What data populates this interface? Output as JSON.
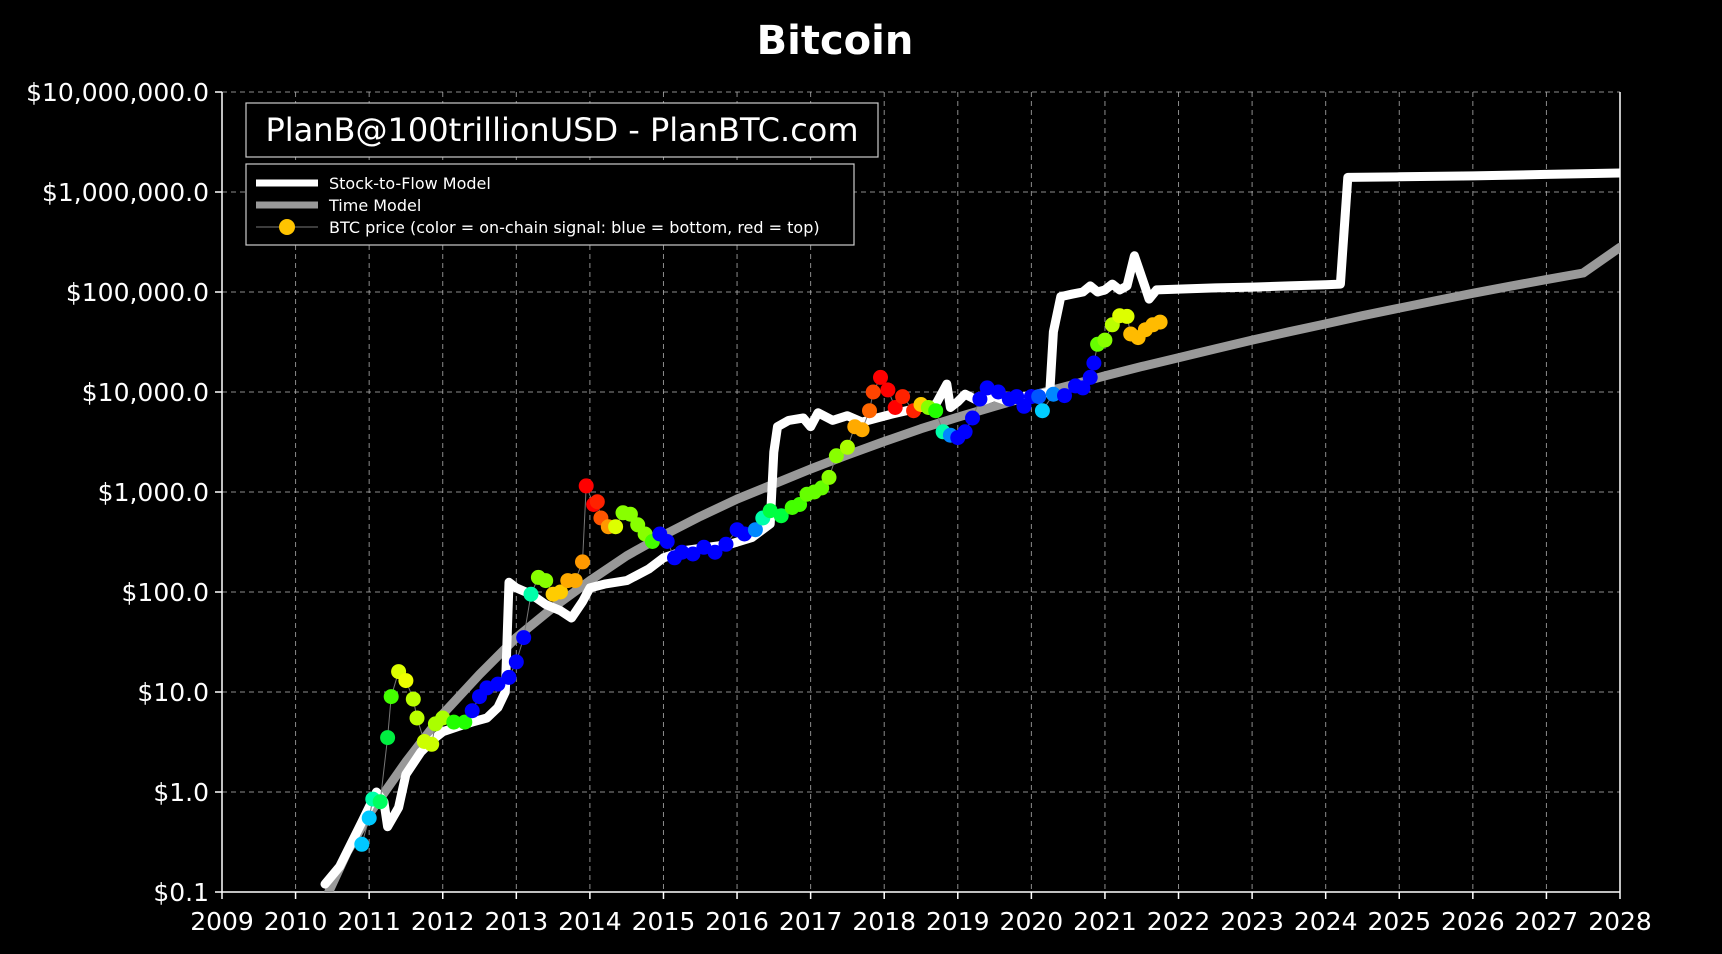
{
  "chart_data": {
    "type": "line",
    "title": "Bitcoin",
    "annotation": "PlanB@100trillionUSD - PlanBTC.com",
    "xlabel": "",
    "ylabel": "",
    "y_scale": "log",
    "xlim": [
      2009,
      2028
    ],
    "ylim": [
      0.1,
      10000000
    ],
    "grid": true,
    "background": "#000000",
    "legend_position": "top-left",
    "x_ticks": [
      "2009",
      "2010",
      "2011",
      "2012",
      "2013",
      "2014",
      "2015",
      "2016",
      "2017",
      "2018",
      "2019",
      "2020",
      "2021",
      "2022",
      "2023",
      "2024",
      "2025",
      "2026",
      "2027",
      "2028"
    ],
    "y_ticks": [
      "$0.1",
      "$1.0",
      "$10.0",
      "$100.0",
      "$1,000.0",
      "$10,000.0",
      "$100,000.0",
      "$1,000,000.0",
      "$10,000,000.0"
    ],
    "legend": [
      {
        "label": "Stock-to-Flow Model",
        "color": "#ffffff"
      },
      {
        "label": "Time Model",
        "color": "#999999"
      },
      {
        "label": "BTC price (color = on-chain signal: blue = bottom, red = top)",
        "color": "#ffc400"
      }
    ],
    "series": [
      {
        "name": "Stock-to-Flow Model",
        "color": "#ffffff",
        "points": [
          [
            2010.4,
            0.12
          ],
          [
            2010.6,
            0.18
          ],
          [
            2010.9,
            0.5
          ],
          [
            2011.1,
            1.0
          ],
          [
            2011.2,
            0.8
          ],
          [
            2011.25,
            0.45
          ],
          [
            2011.4,
            0.7
          ],
          [
            2011.5,
            1.5
          ],
          [
            2011.7,
            2.5
          ],
          [
            2011.9,
            3.5
          ],
          [
            2012.0,
            4.0
          ],
          [
            2012.2,
            4.5
          ],
          [
            2012.4,
            5.0
          ],
          [
            2012.6,
            5.5
          ],
          [
            2012.75,
            7
          ],
          [
            2012.85,
            10
          ],
          [
            2012.9,
            125
          ],
          [
            2013.0,
            110
          ],
          [
            2013.2,
            95
          ],
          [
            2013.4,
            75
          ],
          [
            2013.6,
            65
          ],
          [
            2013.75,
            55
          ],
          [
            2013.9,
            80
          ],
          [
            2014.0,
            110
          ],
          [
            2014.2,
            120
          ],
          [
            2014.5,
            130
          ],
          [
            2014.8,
            170
          ],
          [
            2015.0,
            220
          ],
          [
            2015.3,
            260
          ],
          [
            2015.6,
            280
          ],
          [
            2015.9,
            300
          ],
          [
            2016.2,
            350
          ],
          [
            2016.45,
            480
          ],
          [
            2016.5,
            2500
          ],
          [
            2016.55,
            4500
          ],
          [
            2016.7,
            5200
          ],
          [
            2016.9,
            5500
          ],
          [
            2017.0,
            4500
          ],
          [
            2017.1,
            6200
          ],
          [
            2017.3,
            5200
          ],
          [
            2017.5,
            5800
          ],
          [
            2017.7,
            5000
          ],
          [
            2017.9,
            5500
          ],
          [
            2018.1,
            6000
          ],
          [
            2018.3,
            6500
          ],
          [
            2018.5,
            7000
          ],
          [
            2018.7,
            7500
          ],
          [
            2018.85,
            12000
          ],
          [
            2018.9,
            7000
          ],
          [
            2019.0,
            8000
          ],
          [
            2019.1,
            9500
          ],
          [
            2019.3,
            8000
          ],
          [
            2019.5,
            9000
          ],
          [
            2019.7,
            8000
          ],
          [
            2019.9,
            9000
          ],
          [
            2020.1,
            9500
          ],
          [
            2020.25,
            10000
          ],
          [
            2020.3,
            40000
          ],
          [
            2020.4,
            90000
          ],
          [
            2020.55,
            95000
          ],
          [
            2020.7,
            100000
          ],
          [
            2020.8,
            115000
          ],
          [
            2020.9,
            100000
          ],
          [
            2021.0,
            105000
          ],
          [
            2021.1,
            120000
          ],
          [
            2021.2,
            105000
          ],
          [
            2021.3,
            115000
          ],
          [
            2021.4,
            230000
          ],
          [
            2021.55,
            110000
          ],
          [
            2021.6,
            85000
          ],
          [
            2021.7,
            105000
          ],
          [
            2022.0,
            107000
          ],
          [
            2022.5,
            110000
          ],
          [
            2023.0,
            112000
          ],
          [
            2023.5,
            115000
          ],
          [
            2024.0,
            118000
          ],
          [
            2024.2,
            120000
          ],
          [
            2024.3,
            1400000
          ],
          [
            2025.0,
            1420000
          ],
          [
            2026.0,
            1450000
          ],
          [
            2027.0,
            1500000
          ],
          [
            2028.0,
            1550000
          ]
        ]
      },
      {
        "name": "Time Model",
        "color": "#999999",
        "points": [
          [
            2010.45,
            0.1
          ],
          [
            2010.7,
            0.25
          ],
          [
            2011.0,
            0.6
          ],
          [
            2011.5,
            2.0
          ],
          [
            2012.0,
            6.0
          ],
          [
            2012.5,
            15
          ],
          [
            2013.0,
            35
          ],
          [
            2013.5,
            70
          ],
          [
            2014.0,
            130
          ],
          [
            2014.5,
            230
          ],
          [
            2015.0,
            370
          ],
          [
            2015.5,
            570
          ],
          [
            2016.0,
            850
          ],
          [
            2016.5,
            1200
          ],
          [
            2017.0,
            1700
          ],
          [
            2017.5,
            2350
          ],
          [
            2018.0,
            3200
          ],
          [
            2018.5,
            4300
          ],
          [
            2019.0,
            5600
          ],
          [
            2019.5,
            7200
          ],
          [
            2020.0,
            9200
          ],
          [
            2020.5,
            11500
          ],
          [
            2021.0,
            14500
          ],
          [
            2021.5,
            18000
          ],
          [
            2022.0,
            22000
          ],
          [
            2022.5,
            27000
          ],
          [
            2023.0,
            33000
          ],
          [
            2023.5,
            40000
          ],
          [
            2024.0,
            48000
          ],
          [
            2024.5,
            58000
          ],
          [
            2025.0,
            69000
          ],
          [
            2025.5,
            82000
          ],
          [
            2026.0,
            97000
          ],
          [
            2026.5,
            114000
          ],
          [
            2027.0,
            133000
          ],
          [
            2027.5,
            155000
          ],
          [
            2028.0,
            280000
          ]
        ]
      },
      {
        "name": "BTC price (color = on-chain signal: blue = bottom, red = top)",
        "type": "scatter",
        "points": [
          [
            2010.9,
            0.3,
            "#00c8ff"
          ],
          [
            2011.0,
            0.55,
            "#00c8ff"
          ],
          [
            2011.05,
            0.85,
            "#00ffaa"
          ],
          [
            2011.15,
            0.8,
            "#00ff60"
          ],
          [
            2011.25,
            3.5,
            "#00ee40"
          ],
          [
            2011.3,
            9,
            "#44ff00"
          ],
          [
            2011.4,
            16,
            "#ddff00"
          ],
          [
            2011.5,
            13,
            "#eeff00"
          ],
          [
            2011.6,
            8.5,
            "#bbff00"
          ],
          [
            2011.65,
            5.5,
            "#bbff00"
          ],
          [
            2011.75,
            3.2,
            "#ccff00"
          ],
          [
            2011.85,
            3.0,
            "#ccff00"
          ],
          [
            2011.9,
            4.8,
            "#aaff00"
          ],
          [
            2012.0,
            5.5,
            "#aaff00"
          ],
          [
            2012.15,
            5.0,
            "#22ff00"
          ],
          [
            2012.3,
            5.0,
            "#22ff00"
          ],
          [
            2012.4,
            6.5,
            "#0000ff"
          ],
          [
            2012.5,
            9,
            "#0000ff"
          ],
          [
            2012.6,
            11,
            "#0000ff"
          ],
          [
            2012.75,
            12,
            "#0000ff"
          ],
          [
            2012.9,
            14,
            "#0000ff"
          ],
          [
            2013.0,
            20,
            "#0000ff"
          ],
          [
            2013.1,
            35,
            "#0000ff"
          ],
          [
            2013.2,
            95,
            "#00ffaa"
          ],
          [
            2013.3,
            140,
            "#88ff00"
          ],
          [
            2013.4,
            130,
            "#88ff00"
          ],
          [
            2013.5,
            95,
            "#ffcc00"
          ],
          [
            2013.6,
            100,
            "#ffcc00"
          ],
          [
            2013.7,
            130,
            "#ffaa00"
          ],
          [
            2013.8,
            130,
            "#ffaa00"
          ],
          [
            2013.9,
            200,
            "#ff9900"
          ],
          [
            2013.95,
            1150,
            "#ff0000"
          ],
          [
            2014.05,
            750,
            "#ff0000"
          ],
          [
            2014.1,
            800,
            "#ff2200"
          ],
          [
            2014.15,
            550,
            "#ff5500"
          ],
          [
            2014.25,
            450,
            "#ff9900"
          ],
          [
            2014.35,
            450,
            "#ddff00"
          ],
          [
            2014.45,
            620,
            "#88ff00"
          ],
          [
            2014.55,
            600,
            "#88ff00"
          ],
          [
            2014.65,
            470,
            "#88ff00"
          ],
          [
            2014.75,
            380,
            "#88ff00"
          ],
          [
            2014.85,
            320,
            "#44ff00"
          ],
          [
            2014.95,
            380,
            "#0000ff"
          ],
          [
            2015.05,
            320,
            "#0000ff"
          ],
          [
            2015.15,
            220,
            "#0000ff"
          ],
          [
            2015.25,
            250,
            "#0000ff"
          ],
          [
            2015.4,
            240,
            "#0000ff"
          ],
          [
            2015.55,
            280,
            "#0000ff"
          ],
          [
            2015.7,
            250,
            "#0000ff"
          ],
          [
            2015.85,
            300,
            "#0000ff"
          ],
          [
            2016.0,
            420,
            "#0000ff"
          ],
          [
            2016.1,
            380,
            "#0000ff"
          ],
          [
            2016.25,
            420,
            "#0088ff"
          ],
          [
            2016.35,
            550,
            "#00ffaa"
          ],
          [
            2016.45,
            650,
            "#00ff40"
          ],
          [
            2016.6,
            580,
            "#00ff40"
          ],
          [
            2016.75,
            700,
            "#44ff00"
          ],
          [
            2016.85,
            750,
            "#44ff00"
          ],
          [
            2016.95,
            950,
            "#66ff00"
          ],
          [
            2017.05,
            1000,
            "#66ff00"
          ],
          [
            2017.15,
            1100,
            "#66ff00"
          ],
          [
            2017.25,
            1400,
            "#88ff00"
          ],
          [
            2017.35,
            2300,
            "#88ff00"
          ],
          [
            2017.5,
            2800,
            "#aaff00"
          ],
          [
            2017.6,
            4500,
            "#ffaa00"
          ],
          [
            2017.7,
            4200,
            "#ffaa00"
          ],
          [
            2017.8,
            6500,
            "#ff6600"
          ],
          [
            2017.85,
            10000,
            "#ff4400"
          ],
          [
            2017.95,
            14000,
            "#ff0000"
          ],
          [
            2018.05,
            10500,
            "#ff0000"
          ],
          [
            2018.15,
            7000,
            "#ff0000"
          ],
          [
            2018.25,
            9000,
            "#ff2200"
          ],
          [
            2018.4,
            6500,
            "#ff2200"
          ],
          [
            2018.5,
            7500,
            "#ffcc00"
          ],
          [
            2018.6,
            7000,
            "#88ff00"
          ],
          [
            2018.7,
            6500,
            "#22ff00"
          ],
          [
            2018.8,
            4000,
            "#00ffaa"
          ],
          [
            2018.9,
            3700,
            "#0088ff"
          ],
          [
            2019.0,
            3500,
            "#0000ff"
          ],
          [
            2019.1,
            4000,
            "#0000ff"
          ],
          [
            2019.2,
            5500,
            "#0000ff"
          ],
          [
            2019.3,
            8500,
            "#0000ff"
          ],
          [
            2019.4,
            11000,
            "#0000ff"
          ],
          [
            2019.55,
            10000,
            "#0000ff"
          ],
          [
            2019.7,
            8500,
            "#0000ff"
          ],
          [
            2019.8,
            9000,
            "#0000ff"
          ],
          [
            2019.9,
            7200,
            "#0000ff"
          ],
          [
            2020.0,
            9000,
            "#0000ff"
          ],
          [
            2020.1,
            9000,
            "#0055ff"
          ],
          [
            2020.15,
            6500,
            "#00ccff"
          ],
          [
            2020.3,
            9500,
            "#0088ff"
          ],
          [
            2020.45,
            9200,
            "#0000ff"
          ],
          [
            2020.6,
            11500,
            "#0000ff"
          ],
          [
            2020.7,
            11000,
            "#0000ff"
          ],
          [
            2020.8,
            14000,
            "#0000ff"
          ],
          [
            2020.85,
            19500,
            "#0000ff"
          ],
          [
            2020.9,
            30000,
            "#66ff00"
          ],
          [
            2021.0,
            33000,
            "#88ff00"
          ],
          [
            2021.1,
            47000,
            "#bbff00"
          ],
          [
            2021.2,
            58000,
            "#ddff00"
          ],
          [
            2021.3,
            57000,
            "#ddff00"
          ],
          [
            2021.35,
            38000,
            "#ffbb00"
          ],
          [
            2021.45,
            35000,
            "#ffbb00"
          ],
          [
            2021.55,
            42000,
            "#ffbb00"
          ],
          [
            2021.65,
            47000,
            "#ffbb00"
          ],
          [
            2021.75,
            50000,
            "#ffbb00"
          ]
        ]
      }
    ]
  }
}
